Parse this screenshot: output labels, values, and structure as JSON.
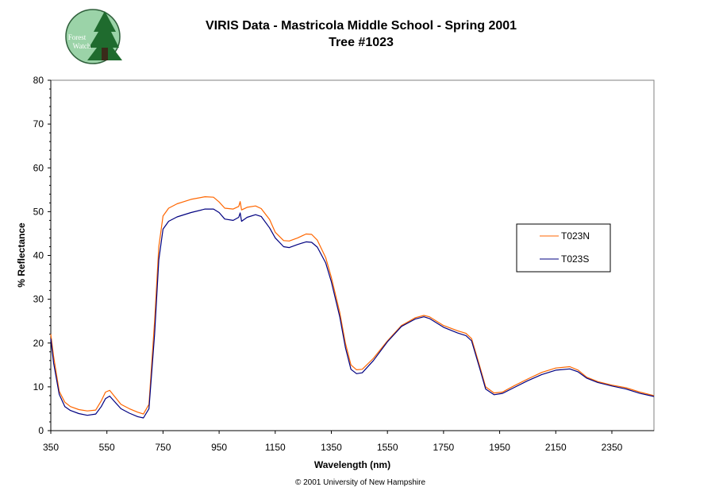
{
  "logo": {
    "name": "forest-watch-logo",
    "text_line1": "Forest",
    "text_line2": "Watch"
  },
  "footer": {
    "copyright": "© 2001 University of New Hampshire"
  },
  "chart_data": {
    "type": "line",
    "title": "VIRIS Data - Mastricola Middle School - Spring 2001",
    "subtitle": "Tree #1023",
    "xlabel": "Wavelength (nm)",
    "ylabel": "% Reflectance",
    "xlim": [
      350,
      2500
    ],
    "ylim": [
      0,
      80
    ],
    "x_ticks": [
      350,
      550,
      750,
      950,
      1150,
      1350,
      1550,
      1750,
      1950,
      2150,
      2350
    ],
    "y_ticks": [
      0,
      10,
      20,
      30,
      40,
      50,
      60,
      70,
      80
    ],
    "grid": false,
    "legend_position": "right",
    "series": [
      {
        "name": "T023N",
        "color": "#FF6600",
        "points": [
          [
            350,
            22
          ],
          [
            360,
            17
          ],
          [
            380,
            9
          ],
          [
            400,
            6.5
          ],
          [
            420,
            5.5
          ],
          [
            450,
            4.8
          ],
          [
            480,
            4.5
          ],
          [
            510,
            4.7
          ],
          [
            530,
            6.8
          ],
          [
            545,
            8.8
          ],
          [
            560,
            9.2
          ],
          [
            575,
            8
          ],
          [
            600,
            6
          ],
          [
            630,
            5
          ],
          [
            660,
            4.2
          ],
          [
            680,
            3.8
          ],
          [
            700,
            6
          ],
          [
            720,
            25
          ],
          [
            735,
            42
          ],
          [
            750,
            49
          ],
          [
            770,
            50.8
          ],
          [
            800,
            51.8
          ],
          [
            850,
            52.8
          ],
          [
            900,
            53.4
          ],
          [
            930,
            53.3
          ],
          [
            950,
            52.2
          ],
          [
            970,
            50.8
          ],
          [
            1000,
            50.6
          ],
          [
            1020,
            51.2
          ],
          [
            1025,
            52.3
          ],
          [
            1030,
            50.4
          ],
          [
            1050,
            51
          ],
          [
            1080,
            51.3
          ],
          [
            1100,
            50.7
          ],
          [
            1130,
            48.2
          ],
          [
            1150,
            45.3
          ],
          [
            1180,
            43.4
          ],
          [
            1200,
            43.3
          ],
          [
            1230,
            44
          ],
          [
            1260,
            44.9
          ],
          [
            1280,
            44.8
          ],
          [
            1300,
            43.5
          ],
          [
            1330,
            39.5
          ],
          [
            1350,
            35
          ],
          [
            1380,
            27
          ],
          [
            1400,
            20
          ],
          [
            1420,
            15
          ],
          [
            1440,
            13.9
          ],
          [
            1460,
            14
          ],
          [
            1500,
            16.5
          ],
          [
            1550,
            20.5
          ],
          [
            1600,
            24
          ],
          [
            1650,
            25.8
          ],
          [
            1680,
            26.3
          ],
          [
            1700,
            26
          ],
          [
            1750,
            24
          ],
          [
            1800,
            22.8
          ],
          [
            1830,
            22.2
          ],
          [
            1850,
            21
          ],
          [
            1880,
            14.5
          ],
          [
            1900,
            10
          ],
          [
            1930,
            8.6
          ],
          [
            1960,
            8.8
          ],
          [
            2000,
            10.2
          ],
          [
            2050,
            11.8
          ],
          [
            2100,
            13.3
          ],
          [
            2150,
            14.3
          ],
          [
            2200,
            14.6
          ],
          [
            2230,
            13.8
          ],
          [
            2260,
            12.2
          ],
          [
            2300,
            11.2
          ],
          [
            2350,
            10.4
          ],
          [
            2400,
            9.8
          ],
          [
            2450,
            8.8
          ],
          [
            2500,
            8
          ]
        ]
      },
      {
        "name": "T023S",
        "color": "#000080",
        "points": [
          [
            350,
            21
          ],
          [
            360,
            15.5
          ],
          [
            380,
            8.3
          ],
          [
            400,
            5.5
          ],
          [
            420,
            4.6
          ],
          [
            450,
            3.9
          ],
          [
            480,
            3.5
          ],
          [
            510,
            3.8
          ],
          [
            530,
            5.5
          ],
          [
            545,
            7.3
          ],
          [
            560,
            7.9
          ],
          [
            575,
            6.8
          ],
          [
            600,
            5
          ],
          [
            630,
            4
          ],
          [
            660,
            3.2
          ],
          [
            680,
            2.9
          ],
          [
            700,
            5
          ],
          [
            720,
            22
          ],
          [
            735,
            39
          ],
          [
            750,
            46
          ],
          [
            770,
            47.8
          ],
          [
            800,
            48.8
          ],
          [
            850,
            49.8
          ],
          [
            900,
            50.6
          ],
          [
            930,
            50.6
          ],
          [
            950,
            49.8
          ],
          [
            970,
            48.3
          ],
          [
            1000,
            48
          ],
          [
            1020,
            48.7
          ],
          [
            1025,
            49.7
          ],
          [
            1030,
            47.8
          ],
          [
            1050,
            48.7
          ],
          [
            1080,
            49.3
          ],
          [
            1100,
            48.9
          ],
          [
            1130,
            46.3
          ],
          [
            1150,
            44
          ],
          [
            1180,
            42
          ],
          [
            1200,
            41.8
          ],
          [
            1230,
            42.5
          ],
          [
            1260,
            43.1
          ],
          [
            1280,
            43
          ],
          [
            1300,
            41.9
          ],
          [
            1330,
            38.3
          ],
          [
            1350,
            34
          ],
          [
            1380,
            26
          ],
          [
            1400,
            19
          ],
          [
            1420,
            14
          ],
          [
            1440,
            13
          ],
          [
            1460,
            13.2
          ],
          [
            1500,
            16
          ],
          [
            1550,
            20.3
          ],
          [
            1600,
            23.8
          ],
          [
            1650,
            25.5
          ],
          [
            1680,
            26
          ],
          [
            1700,
            25.6
          ],
          [
            1750,
            23.6
          ],
          [
            1800,
            22.3
          ],
          [
            1830,
            21.7
          ],
          [
            1850,
            20.5
          ],
          [
            1880,
            14
          ],
          [
            1900,
            9.5
          ],
          [
            1930,
            8.2
          ],
          [
            1960,
            8.5
          ],
          [
            2000,
            9.8
          ],
          [
            2050,
            11.4
          ],
          [
            2100,
            12.8
          ],
          [
            2150,
            13.8
          ],
          [
            2200,
            14.1
          ],
          [
            2230,
            13.4
          ],
          [
            2260,
            12
          ],
          [
            2300,
            11
          ],
          [
            2350,
            10.2
          ],
          [
            2400,
            9.5
          ],
          [
            2450,
            8.5
          ],
          [
            2500,
            7.8
          ]
        ]
      }
    ]
  }
}
